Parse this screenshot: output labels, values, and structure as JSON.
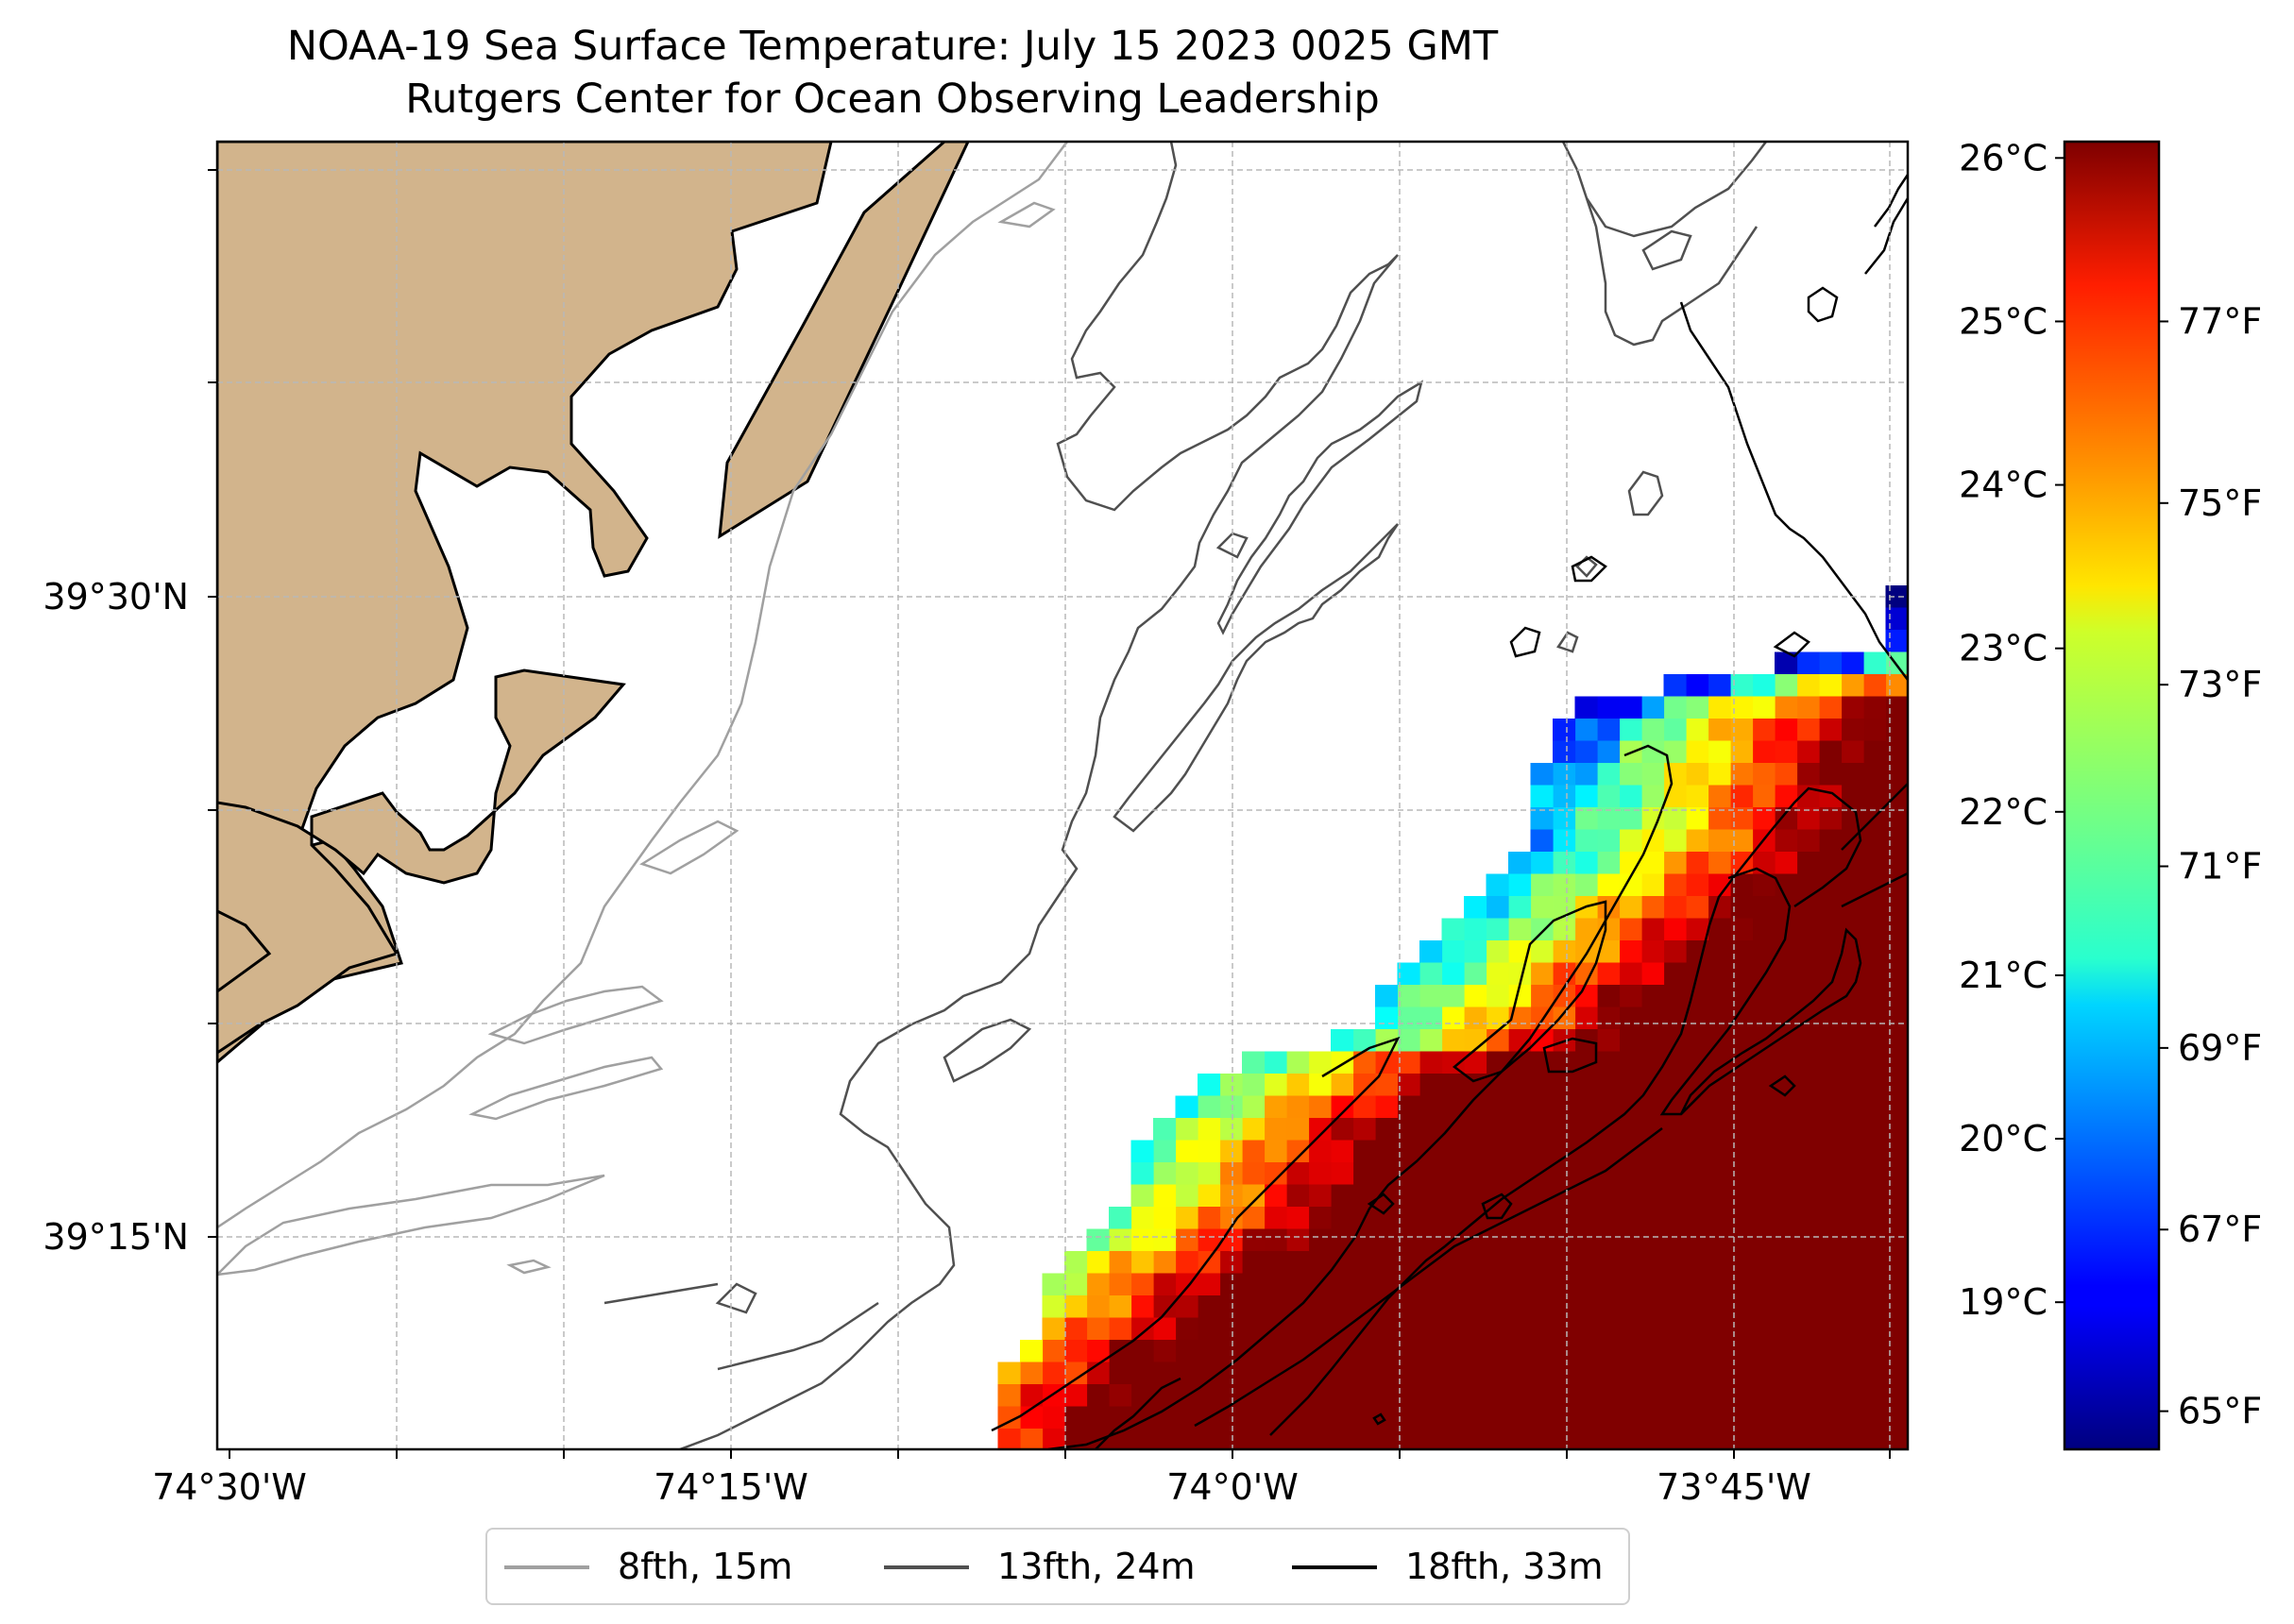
{
  "title": {
    "line1": "NOAA-19 Sea Surface Temperature: July 15 2023 0025 GMT",
    "line2": "Rutgers Center for Ocean Observing Leadership"
  },
  "map": {
    "x_ticks": [
      "74°30'W",
      "74°15'W",
      "74°0'W",
      "73°45'W"
    ],
    "y_ticks": [
      "39°30'N",
      "39°15'N"
    ],
    "land_color": "#d2b48c",
    "grid": true
  },
  "colorbar": {
    "colormap": "jet",
    "celsius_labels": [
      "26°C",
      "25°C",
      "24°C",
      "23°C",
      "22°C",
      "21°C",
      "20°C",
      "19°C"
    ],
    "fahrenheit_labels": [
      "77°F",
      "75°F",
      "73°F",
      "71°F",
      "69°F",
      "67°F",
      "65°F"
    ],
    "range_celsius": [
      18.1,
      26.1
    ]
  },
  "sst_field": {
    "units": "°C",
    "coverage": "southeast quadrant of map",
    "min_value": 18.1,
    "max_value": 26.1
  },
  "legend": {
    "items": [
      {
        "label": "8fth, 15m",
        "color": "#a0a0a0"
      },
      {
        "label": "13fth, 24m",
        "color": "#505050"
      },
      {
        "label": "18fth, 33m",
        "color": "#000000"
      }
    ]
  }
}
